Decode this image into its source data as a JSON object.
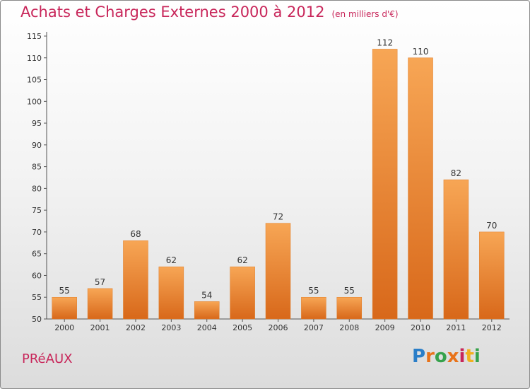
{
  "header": {
    "title": "Achats et Charges Externes 2000 à 2012",
    "subtitle": "(en milliers d'€)"
  },
  "footer": {
    "town": "PRéAUX",
    "brand_letters": [
      "P",
      "r",
      "o",
      "x",
      "i",
      "t",
      "i"
    ],
    "brand_colors": [
      "#2a7ec8",
      "#e8731a",
      "#36a24c",
      "#e8731a",
      "#c8265a",
      "#f2b01e",
      "#36a24c"
    ]
  },
  "chart_data": {
    "type": "bar",
    "title": "Achats et Charges Externes 2000 à 2012",
    "subtitle": "(en milliers d'€)",
    "categories": [
      "2000",
      "2001",
      "2002",
      "2003",
      "2004",
      "2005",
      "2006",
      "2007",
      "2008",
      "2009",
      "2010",
      "2011",
      "2012"
    ],
    "values": [
      55,
      57,
      68,
      62,
      54,
      62,
      72,
      55,
      55,
      112,
      110,
      82,
      70
    ],
    "ylim": [
      50,
      115
    ],
    "yticks": [
      50,
      55,
      60,
      65,
      70,
      75,
      80,
      85,
      90,
      95,
      100,
      105,
      110,
      115
    ],
    "grid": false,
    "bar_color": "#f0922e"
  }
}
